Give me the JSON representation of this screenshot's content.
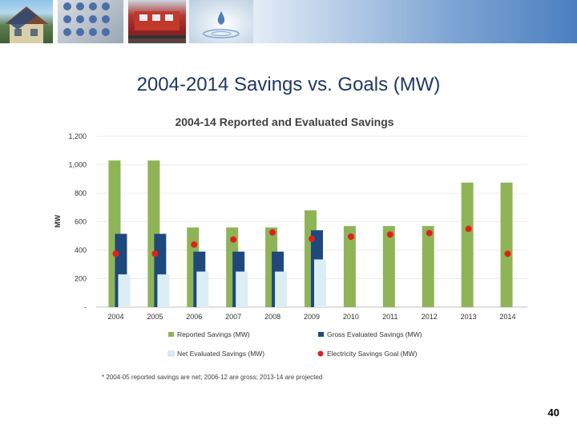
{
  "slide": {
    "title": "2004-2014 Savings vs. Goals (MW)",
    "page_number": "40",
    "banner_photos": [
      "house-photo",
      "calculator-photo",
      "train-photo",
      "water-drop-photo"
    ]
  },
  "chart_data": {
    "type": "bar",
    "title": "2004-14 Reported and Evaluated Savings",
    "xlabel": "",
    "ylabel": "MW",
    "ylim": [
      0,
      1200
    ],
    "yticks": [
      0,
      200,
      400,
      600,
      800,
      1000,
      1200
    ],
    "ytick_labels": [
      "-",
      "200",
      "400",
      "600",
      "800",
      "1,000",
      "1,200"
    ],
    "categories": [
      "2004",
      "2005",
      "2006",
      "2007",
      "2008",
      "2009",
      "2010",
      "2011",
      "2012",
      "2013",
      "2014"
    ],
    "series": [
      {
        "name": "Reported Savings (MW)",
        "kind": "bar",
        "color": "#8fb457",
        "values": [
          1030,
          1030,
          560,
          560,
          560,
          680,
          570,
          570,
          570,
          875,
          875
        ]
      },
      {
        "name": "Gross Evaluated Savings (MW)",
        "kind": "bar",
        "color": "#1f497d",
        "values": [
          515,
          515,
          390,
          390,
          390,
          540,
          null,
          null,
          null,
          null,
          null
        ]
      },
      {
        "name": "Net Evaluated Savings (MW)",
        "kind": "bar",
        "color": "#dbeef4",
        "values": [
          230,
          230,
          250,
          250,
          250,
          335,
          null,
          null,
          null,
          null,
          null
        ]
      },
      {
        "name": "Electricity Savings Goal (MW)",
        "kind": "marker",
        "color": "#e0211a",
        "values": [
          375,
          375,
          440,
          475,
          525,
          480,
          495,
          510,
          520,
          550,
          375
        ]
      }
    ],
    "legend_position": "bottom",
    "footnote": "* 2004-05 reported savings are net; 2006-12 are gross; 2013-14 are projected"
  }
}
